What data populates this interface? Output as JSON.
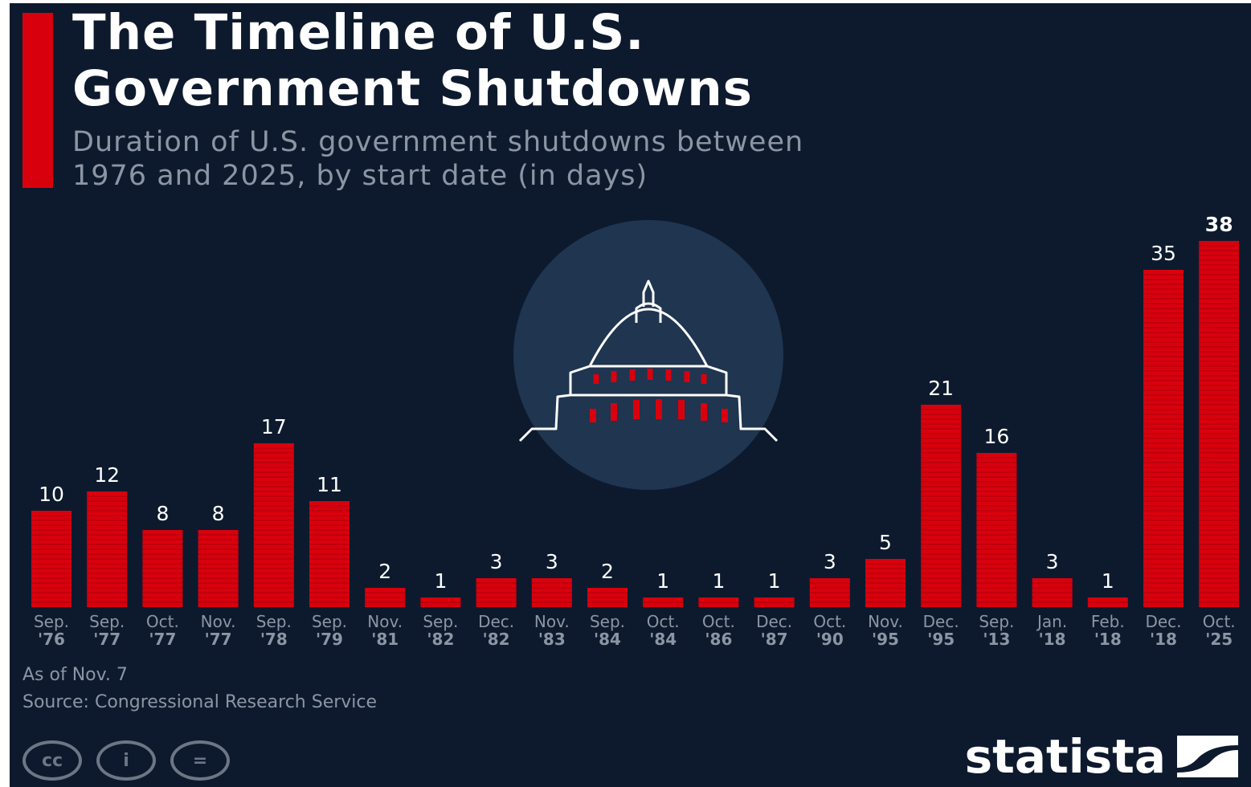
{
  "header": {
    "title_line1": "The Timeline of U.S.",
    "title_line2": "Government Shutdowns",
    "subtitle_line1": "Duration of U.S. government shutdowns between",
    "subtitle_line2": "1976 and 2025, by start date (in days)"
  },
  "chart_data": {
    "type": "bar",
    "title": "The Timeline of U.S. Government Shutdowns",
    "subtitle": "Duration of U.S. government shutdowns between 1976 and 2025, by start date (in days)",
    "categories": [
      [
        "Sep.",
        "'76"
      ],
      [
        "Sep.",
        "'77"
      ],
      [
        "Oct.",
        "'77"
      ],
      [
        "Nov.",
        "'77"
      ],
      [
        "Sep.",
        "'78"
      ],
      [
        "Sep.",
        "'79"
      ],
      [
        "Nov.",
        "'81"
      ],
      [
        "Sep.",
        "'82"
      ],
      [
        "Dec.",
        "'82"
      ],
      [
        "Nov.",
        "'83"
      ],
      [
        "Sep.",
        "'84"
      ],
      [
        "Oct.",
        "'84"
      ],
      [
        "Oct.",
        "'86"
      ],
      [
        "Dec.",
        "'87"
      ],
      [
        "Oct.",
        "'90"
      ],
      [
        "Nov.",
        "'95"
      ],
      [
        "Dec.",
        "'95"
      ],
      [
        "Sep.",
        "'13"
      ],
      [
        "Jan.",
        "'18"
      ],
      [
        "Feb.",
        "'18"
      ],
      [
        "Dec.",
        "'18"
      ],
      [
        "Oct.",
        "'25"
      ]
    ],
    "values": [
      10,
      12,
      8,
      8,
      17,
      11,
      2,
      1,
      3,
      3,
      2,
      1,
      1,
      1,
      3,
      5,
      21,
      16,
      3,
      1,
      35,
      38
    ],
    "ylim": [
      0,
      38
    ],
    "data_labels": true,
    "highlight_last": true,
    "grid": false,
    "xlabel": "",
    "ylabel": ""
  },
  "colors": {
    "background": "#0d1a2e",
    "bar": "#d9000d",
    "bar_stripe": "#a8000a",
    "accent": "#d9000d",
    "text": "#ffffff",
    "muted_text": "#8c95a3",
    "illustration_glow": "#1f3550"
  },
  "illustration": {
    "icon": "capitol-dome-icon"
  },
  "footer": {
    "note": "As of Nov. 7",
    "source": "Source: Congressional Research Service",
    "license_icons": [
      {
        "name": "cc-icon",
        "glyph": "cc"
      },
      {
        "name": "attribution-icon",
        "glyph": "i"
      },
      {
        "name": "no-derivatives-icon",
        "glyph": "="
      }
    ],
    "brand": "statista"
  }
}
